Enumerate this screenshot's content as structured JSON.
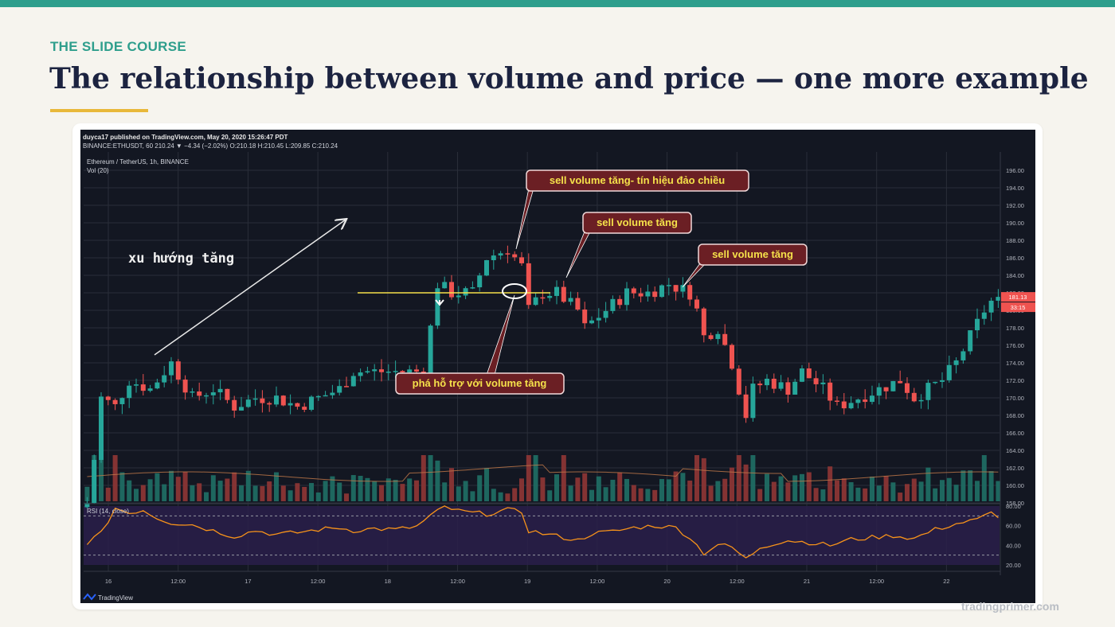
{
  "slide": {
    "kicker": "THE SLIDE COURSE",
    "title": "The relationship between volume and price — one more example",
    "footer": "tradingprimer.com"
  },
  "colors": {
    "accent": "#2e9e8c",
    "gold": "#e8b83a",
    "title": "#1c2340",
    "up": "#26a69a",
    "down": "#ef5350",
    "chart_bg": "#131722",
    "callout_text": "#f5e14a",
    "callout_bg": "#6b1f24"
  },
  "chart_header": {
    "publisher": "duyca17 published on TradingView.com, May 20, 2020 15:26:47 PDT",
    "symbol_line": "BINANCE:ETHUSDT, 60 210.24 ▼ −4.34 (−2.02%) O:210.18 H:210.45 L:209.85 C:210.24",
    "pair": "Ethereum / TetherUS, 1h, BINANCE",
    "vol": "Vol (20)",
    "rsi": "RSI (14, close)",
    "logo": "TradingView"
  },
  "annotations": {
    "trend": "xu hướng tăng",
    "callout_1": "sell volume tăng- tín hiệu đảo chiều",
    "callout_2": "sell volume tăng",
    "callout_3": "sell volume tăng",
    "callout_4": "phá hỗ trợ với volume tăng"
  },
  "chart_data": {
    "type": "candlestick",
    "x_tick_labels": [
      "16",
      "12:00",
      "17",
      "12:00",
      "18",
      "12:00",
      "19",
      "12:00",
      "20",
      "12:00",
      "21",
      "12:00",
      "22"
    ],
    "y_tick_labels": [
      "196.00",
      "194.00",
      "192.00",
      "190.00",
      "188.00",
      "186.00",
      "184.00",
      "182.00",
      "180.00",
      "178.00",
      "176.00",
      "174.00",
      "172.00",
      "170.00",
      "168.00",
      "166.00",
      "164.00",
      "162.00",
      "160.00",
      "158.00"
    ],
    "ylim": [
      157,
      197
    ],
    "rsi_tick_labels": [
      "80.00",
      "60.00",
      "40.00",
      "20.00"
    ],
    "rsi_bands": [
      70,
      30
    ],
    "price_labels": [
      "181.13",
      "33:15"
    ],
    "support_level": 181.0,
    "close_path": [
      [
        0,
        158
      ],
      [
        1,
        163
      ],
      [
        2,
        170
      ],
      [
        4,
        169
      ],
      [
        6,
        172
      ],
      [
        9,
        171
      ],
      [
        12,
        174
      ],
      [
        15,
        170
      ],
      [
        18,
        171
      ],
      [
        21,
        169
      ],
      [
        24,
        170
      ],
      [
        27,
        170
      ],
      [
        30,
        169
      ],
      [
        33,
        170
      ],
      [
        36,
        171
      ],
      [
        38,
        173
      ],
      [
        41,
        173
      ],
      [
        44,
        173
      ],
      [
        48,
        173
      ],
      [
        49,
        178
      ],
      [
        50,
        183
      ],
      [
        52,
        182
      ],
      [
        55,
        182
      ],
      [
        57,
        186
      ],
      [
        60,
        187
      ],
      [
        62,
        185
      ],
      [
        63,
        180
      ],
      [
        65,
        182
      ],
      [
        67,
        182
      ],
      [
        70,
        180
      ],
      [
        71,
        178
      ],
      [
        74,
        180
      ],
      [
        77,
        182
      ],
      [
        80,
        182
      ],
      [
        83,
        183
      ],
      [
        86,
        182
      ],
      [
        87,
        180
      ],
      [
        88,
        177
      ],
      [
        90,
        178
      ],
      [
        92,
        174
      ],
      [
        94,
        168
      ],
      [
        95,
        171
      ],
      [
        97,
        172
      ],
      [
        100,
        171
      ],
      [
        102,
        173
      ],
      [
        105,
        171
      ],
      [
        107,
        169
      ],
      [
        110,
        170
      ],
      [
        113,
        171
      ],
      [
        116,
        172
      ],
      [
        118,
        170
      ],
      [
        120,
        171
      ],
      [
        122,
        172
      ],
      [
        124,
        174
      ],
      [
        126,
        177
      ],
      [
        128,
        180
      ],
      [
        129,
        181
      ]
    ],
    "rsi_path": [
      [
        0,
        43
      ],
      [
        2,
        52
      ],
      [
        4,
        78
      ],
      [
        6,
        73
      ],
      [
        8,
        76
      ],
      [
        10,
        68
      ],
      [
        12,
        63
      ],
      [
        15,
        61
      ],
      [
        18,
        55
      ],
      [
        21,
        49
      ],
      [
        24,
        55
      ],
      [
        27,
        51
      ],
      [
        30,
        53
      ],
      [
        33,
        56
      ],
      [
        36,
        58
      ],
      [
        38,
        55
      ],
      [
        41,
        57
      ],
      [
        44,
        56
      ],
      [
        47,
        59
      ],
      [
        49,
        70
      ],
      [
        51,
        79
      ],
      [
        53,
        75
      ],
      [
        55,
        73
      ],
      [
        57,
        72
      ],
      [
        60,
        76
      ],
      [
        62,
        74
      ],
      [
        63,
        55
      ],
      [
        65,
        52
      ],
      [
        68,
        48
      ],
      [
        70,
        45
      ],
      [
        72,
        52
      ],
      [
        75,
        54
      ],
      [
        78,
        58
      ],
      [
        81,
        60
      ],
      [
        84,
        58
      ],
      [
        86,
        48
      ],
      [
        88,
        32
      ],
      [
        90,
        41
      ],
      [
        92,
        38
      ],
      [
        94,
        26
      ],
      [
        96,
        38
      ],
      [
        98,
        42
      ],
      [
        100,
        45
      ],
      [
        103,
        43
      ],
      [
        106,
        40
      ],
      [
        109,
        46
      ],
      [
        112,
        48
      ],
      [
        115,
        50
      ],
      [
        118,
        47
      ],
      [
        121,
        56
      ],
      [
        124,
        62
      ],
      [
        127,
        66
      ],
      [
        129,
        73
      ],
      [
        130,
        70
      ]
    ]
  }
}
